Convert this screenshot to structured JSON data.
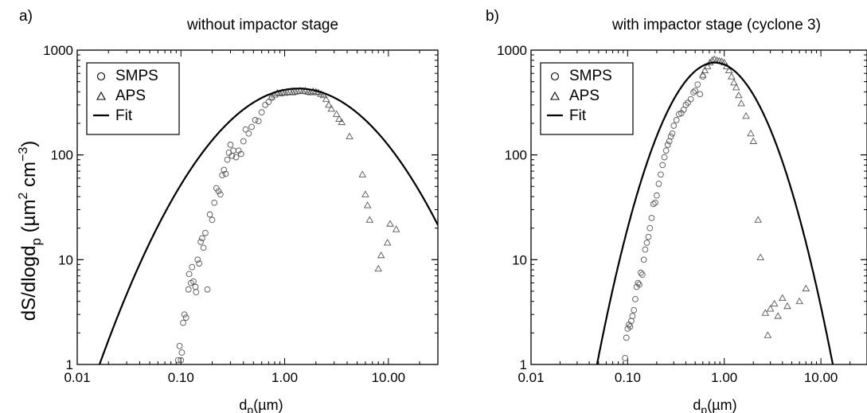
{
  "figure": {
    "ylabel": "dS/dlogd",
    "ylabel_sub": "p",
    "ylabel_units": "(µm",
    "ylabel_sup1": "2",
    "ylabel_cm": " cm",
    "ylabel_sup2": "−3",
    "ylabel_close": ")"
  },
  "chart_data": [
    {
      "type": "scatter",
      "panel_label": "a)",
      "title": "without impactor stage",
      "xlabel": "d",
      "xlabel_sub": "p",
      "xlabel_units": "(µm)",
      "xscale": "log",
      "yscale": "log",
      "xlim": [
        0.01,
        30
      ],
      "ylim": [
        1,
        1000
      ],
      "x_ticks": [
        "0.01",
        "0.10",
        "1.00",
        "10.00"
      ],
      "y_ticks": [
        "1",
        "10",
        "100",
        "1000"
      ],
      "legend": {
        "placement": "top-left",
        "entries": [
          "SMPS",
          "APS",
          "Fit"
        ]
      },
      "series": [
        {
          "name": "SMPS",
          "marker": "circle",
          "points": [
            [
              0.094,
              1.1
            ],
            [
              0.097,
              1.5
            ],
            [
              0.1,
              1.1
            ],
            [
              0.102,
              1.3
            ],
            [
              0.105,
              2.5
            ],
            [
              0.108,
              3.0
            ],
            [
              0.112,
              2.8
            ],
            [
              0.118,
              5.2
            ],
            [
              0.12,
              7.3
            ],
            [
              0.125,
              6.0
            ],
            [
              0.128,
              8.5
            ],
            [
              0.132,
              6.2
            ],
            [
              0.138,
              5.5
            ],
            [
              0.14,
              4.9
            ],
            [
              0.145,
              10.0
            ],
            [
              0.15,
              9.2
            ],
            [
              0.155,
              14.8
            ],
            [
              0.16,
              16.0
            ],
            [
              0.165,
              13.0
            ],
            [
              0.172,
              18.0
            ],
            [
              0.18,
              5.2
            ],
            [
              0.19,
              27.0
            ],
            [
              0.2,
              24.0
            ],
            [
              0.21,
              35.0
            ],
            [
              0.22,
              48.0
            ],
            [
              0.23,
              45.0
            ],
            [
              0.24,
              42.0
            ],
            [
              0.25,
              64.0
            ],
            [
              0.26,
              72.0
            ],
            [
              0.27,
              66.0
            ],
            [
              0.28,
              90.0
            ],
            [
              0.29,
              105.0
            ],
            [
              0.3,
              125.0
            ],
            [
              0.31,
              98.0
            ],
            [
              0.32,
              110.0
            ],
            [
              0.34,
              95.0
            ],
            [
              0.36,
              110.0
            ],
            [
              0.38,
              102.0
            ],
            [
              0.4,
              135.0
            ],
            [
              0.42,
              175.0
            ],
            [
              0.45,
              160.0
            ],
            [
              0.48,
              185.0
            ],
            [
              0.52,
              215.0
            ],
            [
              0.56,
              210.0
            ],
            [
              0.6,
              255.0
            ],
            [
              0.65,
              300.0
            ],
            [
              0.7,
              320.0
            ],
            [
              0.75,
              350.0
            ]
          ]
        },
        {
          "name": "APS",
          "marker": "triangle",
          "points": [
            [
              0.75,
              360
            ],
            [
              0.8,
              375
            ],
            [
              0.85,
              390
            ],
            [
              0.9,
              385
            ],
            [
              0.95,
              395
            ],
            [
              1.0,
              390
            ],
            [
              1.06,
              395
            ],
            [
              1.12,
              400
            ],
            [
              1.19,
              395
            ],
            [
              1.26,
              400
            ],
            [
              1.33,
              405
            ],
            [
              1.41,
              410
            ],
            [
              1.5,
              405
            ],
            [
              1.58,
              410
            ],
            [
              1.68,
              400
            ],
            [
              1.78,
              395
            ],
            [
              1.88,
              405
            ],
            [
              2.0,
              400
            ],
            [
              2.11,
              395
            ],
            [
              2.24,
              380
            ],
            [
              2.37,
              370
            ],
            [
              2.51,
              340
            ],
            [
              2.66,
              300
            ],
            [
              2.82,
              275
            ],
            [
              3.16,
              245
            ],
            [
              3.35,
              220
            ],
            [
              3.55,
              205
            ],
            [
              4.22,
              150
            ],
            [
              5.62,
              65
            ],
            [
              6.0,
              42
            ],
            [
              6.3,
              33
            ],
            [
              6.6,
              24
            ],
            [
              8.0,
              8.2
            ],
            [
              8.5,
              11.0
            ],
            [
              9.8,
              14.5
            ],
            [
              10.4,
              22.0
            ],
            [
              11.9,
              19.5
            ]
          ]
        },
        {
          "name": "Fit",
          "marker": "line",
          "lognormal": {
            "peak": 430,
            "mode_um": 1.35,
            "sigma_log10": 0.55
          }
        }
      ]
    },
    {
      "type": "scatter",
      "panel_label": "b)",
      "title": "with impactor stage (cyclone 3)",
      "xlabel": "d",
      "xlabel_sub": "p",
      "xlabel_units": "(µm)",
      "xscale": "log",
      "yscale": "log",
      "xlim": [
        0.01,
        30
      ],
      "ylim": [
        1,
        1000
      ],
      "x_ticks": [
        "0.01",
        "0.10",
        "1.00",
        "10.00"
      ],
      "y_ticks": [
        "1",
        "10",
        "100",
        "1000"
      ],
      "legend": {
        "placement": "top-left",
        "entries": [
          "SMPS",
          "APS",
          "Fit"
        ]
      },
      "series": [
        {
          "name": "SMPS",
          "marker": "circle",
          "points": [
            [
              0.094,
              1.15
            ],
            [
              0.097,
              1.8
            ],
            [
              0.1,
              2.2
            ],
            [
              0.103,
              2.4
            ],
            [
              0.106,
              2.3
            ],
            [
              0.109,
              2.6
            ],
            [
              0.112,
              2.9
            ],
            [
              0.116,
              3.3
            ],
            [
              0.12,
              4.2
            ],
            [
              0.124,
              5.5
            ],
            [
              0.128,
              6.0
            ],
            [
              0.132,
              5.8
            ],
            [
              0.137,
              7.5
            ],
            [
              0.142,
              7.2
            ],
            [
              0.147,
              10.0
            ],
            [
              0.152,
              12.5
            ],
            [
              0.158,
              14.5
            ],
            [
              0.164,
              16.5
            ],
            [
              0.17,
              20.0
            ],
            [
              0.177,
              25.0
            ],
            [
              0.185,
              34.0
            ],
            [
              0.193,
              35.0
            ],
            [
              0.2,
              41.0
            ],
            [
              0.21,
              53.0
            ],
            [
              0.22,
              65.0
            ],
            [
              0.23,
              80.0
            ],
            [
              0.24,
              95.0
            ],
            [
              0.25,
              110.0
            ],
            [
              0.26,
              125.0
            ],
            [
              0.27,
              135.0
            ],
            [
              0.28,
              150.0
            ],
            [
              0.29,
              160.0
            ],
            [
              0.3,
              190.0
            ],
            [
              0.32,
              215.0
            ],
            [
              0.34,
              245.0
            ],
            [
              0.36,
              250.0
            ],
            [
              0.38,
              270.0
            ],
            [
              0.4,
              300.0
            ],
            [
              0.42,
              315.0
            ],
            [
              0.45,
              340.0
            ],
            [
              0.48,
              395.0
            ],
            [
              0.5,
              410.0
            ],
            [
              0.53,
              470.0
            ],
            [
              0.56,
              380.0
            ],
            [
              0.6,
              560.0
            ]
          ]
        },
        {
          "name": "APS",
          "marker": "triangle",
          "points": [
            [
              0.6,
              580
            ],
            [
              0.63,
              640
            ],
            [
              0.67,
              700
            ],
            [
              0.71,
              760
            ],
            [
              0.75,
              800
            ],
            [
              0.79,
              820
            ],
            [
              0.84,
              800
            ],
            [
              0.89,
              790
            ],
            [
              0.94,
              780
            ],
            [
              1.0,
              760
            ],
            [
              1.06,
              700
            ],
            [
              1.12,
              640
            ],
            [
              1.19,
              560
            ],
            [
              1.26,
              490
            ],
            [
              1.33,
              440
            ],
            [
              1.41,
              370
            ],
            [
              1.5,
              310
            ],
            [
              1.68,
              235
            ],
            [
              1.88,
              160
            ],
            [
              2.0,
              135
            ],
            [
              2.24,
              24.0
            ],
            [
              2.37,
              10.5
            ],
            [
              2.66,
              3.1
            ],
            [
              2.82,
              1.9
            ],
            [
              3.0,
              3.4
            ],
            [
              3.3,
              3.8
            ],
            [
              3.6,
              2.9
            ],
            [
              4.0,
              4.3
            ],
            [
              4.5,
              3.6
            ],
            [
              6.0,
              4.0
            ],
            [
              7.0,
              5.3
            ]
          ]
        },
        {
          "name": "Fit",
          "marker": "line",
          "lognormal": {
            "peak": 760,
            "mode_um": 0.8,
            "sigma_log10": 0.335
          }
        }
      ]
    }
  ]
}
